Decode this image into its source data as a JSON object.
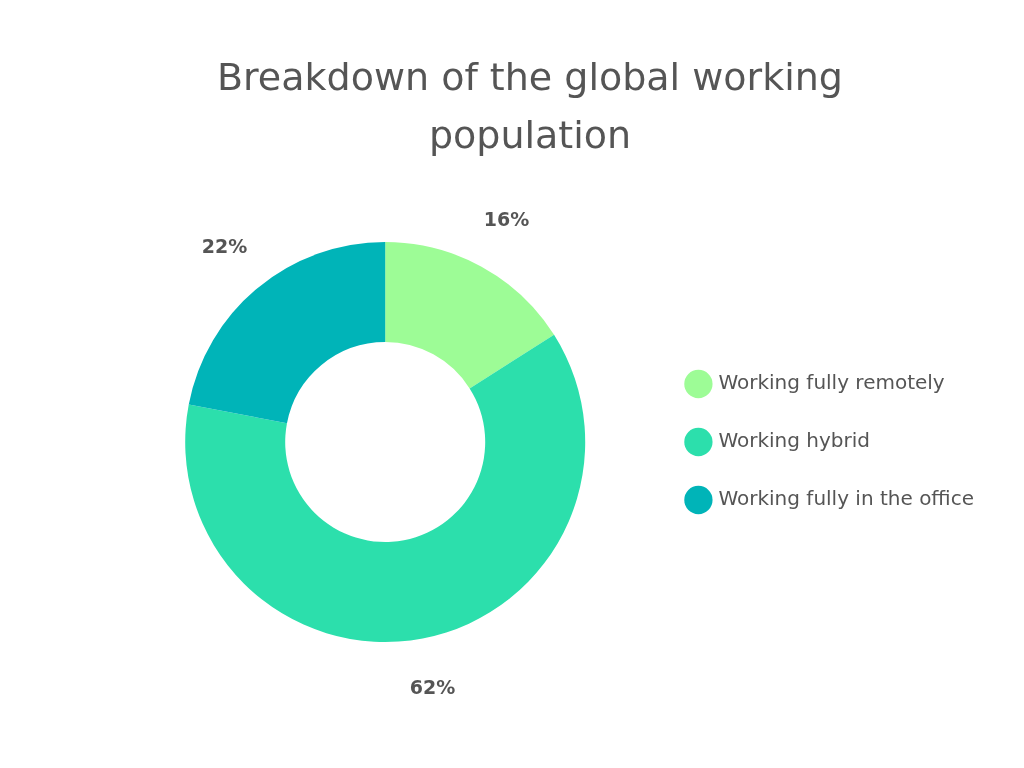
{
  "chart_data": {
    "type": "donut",
    "title": "Breakdown of the global working population",
    "categories": [
      "Working fully remotely",
      "Working hybrid",
      "Working fully in the office"
    ],
    "values": [
      16,
      62,
      22
    ],
    "value_labels": [
      "16%",
      "62%",
      "22%"
    ],
    "colors": [
      "#9dfc96",
      "#2cdfac",
      "#00b4b8"
    ],
    "legend": "right"
  }
}
